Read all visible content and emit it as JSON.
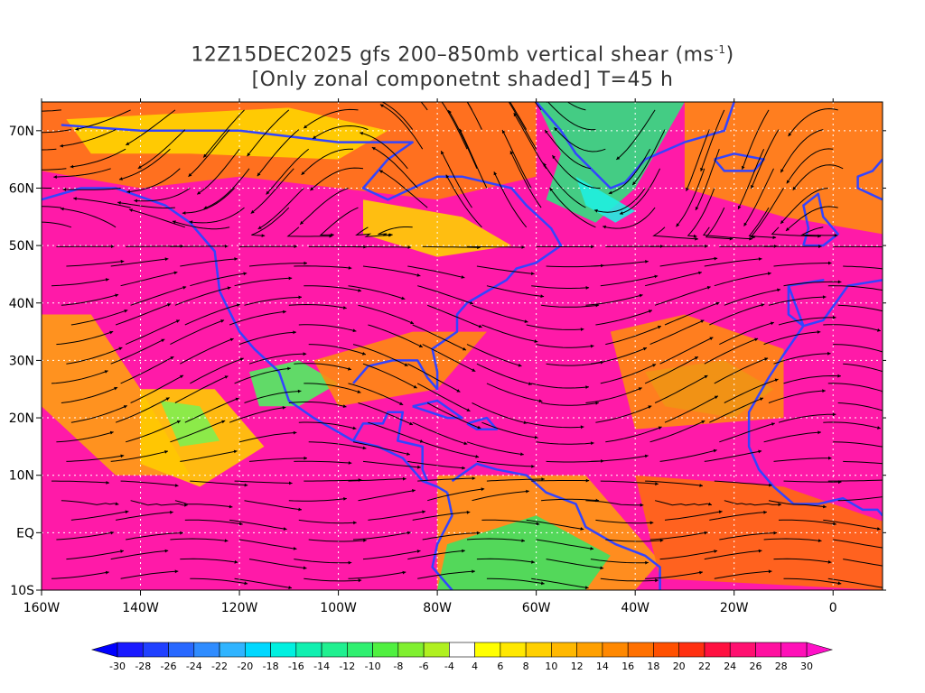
{
  "title": {
    "line1_prefix": "12Z15DEC2025 gfs 200–850mb vertical shear (ms",
    "line1_sup": "-1",
    "line1_suffix": ")",
    "line2": "[Only zonal componetnt shaded] T=45 h"
  },
  "axes": {
    "lon_labels": [
      "160W",
      "140W",
      "120W",
      "100W",
      "80W",
      "60W",
      "40W",
      "20W",
      "0"
    ],
    "lat_labels": [
      "70N",
      "60N",
      "50N",
      "40N",
      "30N",
      "20N",
      "10N",
      "EQ",
      "10S"
    ],
    "lon_values": [
      -160,
      -140,
      -120,
      -100,
      -80,
      -60,
      -40,
      -20,
      0
    ],
    "lat_values": [
      70,
      60,
      50,
      40,
      30,
      20,
      10,
      0,
      -10
    ],
    "lon_range": [
      -160,
      10
    ],
    "lat_range": [
      -10,
      75
    ]
  },
  "colorbar": {
    "labels": [
      "-30",
      "-28",
      "-26",
      "-24",
      "-22",
      "-20",
      "-18",
      "-16",
      "-14",
      "-12",
      "-10",
      "-8",
      "-6",
      "-4",
      "4",
      "6",
      "8",
      "10",
      "12",
      "14",
      "16",
      "18",
      "20",
      "22",
      "24",
      "26",
      "28",
      "30"
    ],
    "colors": [
      "#1a1aff",
      "#2040ff",
      "#2868ff",
      "#2f8cff",
      "#30b4ff",
      "#00d8ff",
      "#00f0e0",
      "#10f0b0",
      "#20f090",
      "#30f070",
      "#50f040",
      "#80f030",
      "#b0f020",
      "#ffffff",
      "#ffff00",
      "#ffe800",
      "#ffd000",
      "#ffb800",
      "#ffa000",
      "#ff8800",
      "#ff7000",
      "#ff5000",
      "#ff3010",
      "#ff1040",
      "#ff1070",
      "#ff10a0",
      "#ff10b8"
    ],
    "low_color": "#0000ff",
    "high_color": "#ff10c8"
  },
  "colors": {
    "coast": "#3344ff",
    "streamline": "#000000",
    "contour": "#8000a0",
    "grid": "#ffffff"
  }
}
